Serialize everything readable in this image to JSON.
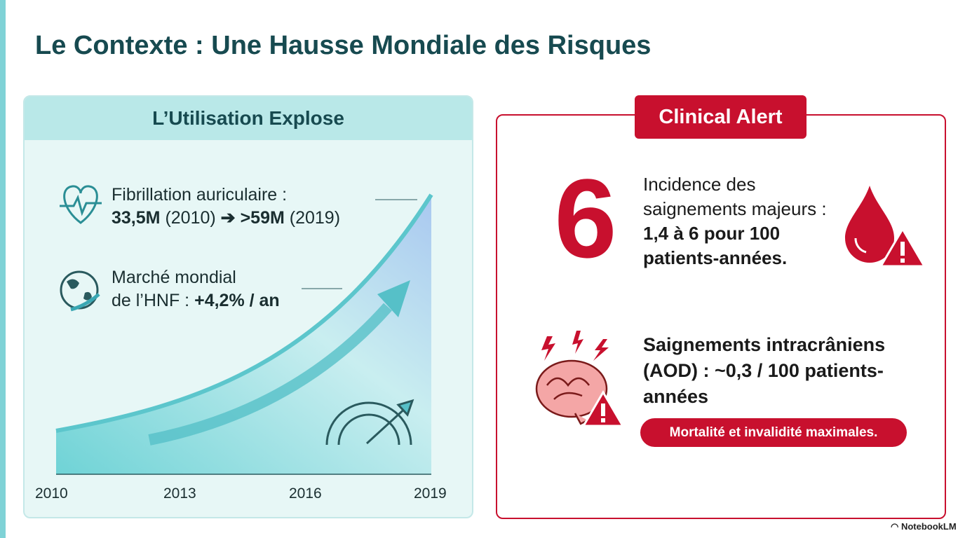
{
  "title": "Le Contexte : Une Hausse Mondiale des Risques",
  "left_panel": {
    "heading": "L’Utilisation Explose",
    "fibrillation": {
      "line1": "Fibrillation auriculaire :",
      "line2": [
        "33,5M",
        "(2010)",
        "➔",
        ">59M",
        "(2019)"
      ]
    },
    "market": {
      "line1": "Marché mondial",
      "line2": [
        "de l’HNF :",
        "+4,2% / an"
      ]
    },
    "axis_labels": [
      "2010",
      "2013",
      "2016",
      "2019"
    ]
  },
  "right_panel": {
    "badge": "Clinical Alert",
    "big_number": "6",
    "incidence": [
      "Incidence des saignements majeurs :",
      "1,4 à 6 pour 100 patients-années."
    ],
    "intracranial": "Saignements intracrâniens (AOD) : ~0,3 / 100 patients-années",
    "pill": "Mortalité et invalidité maximales."
  },
  "footer": "NotebookLM"
}
